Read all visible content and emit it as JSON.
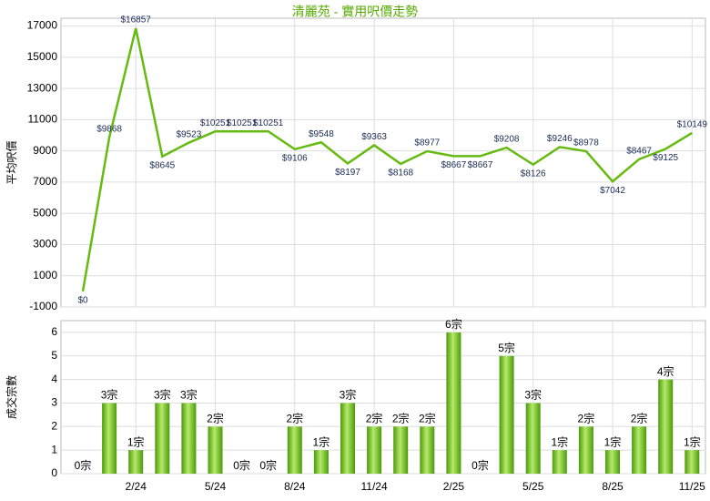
{
  "chart_data": [
    {
      "type": "line",
      "title": "清麗苑 - 實用呎價走勢",
      "y_label": "平均呎價",
      "categories": [
        null,
        null,
        "2/24",
        null,
        null,
        "5/24",
        null,
        null,
        "8/24",
        null,
        null,
        "11/24",
        null,
        null,
        "2/25",
        null,
        null,
        "5/25",
        null,
        null,
        "8/25",
        null,
        null,
        "11/25"
      ],
      "values": [
        0,
        9868,
        16857,
        8645,
        9523,
        10251,
        10251,
        10251,
        9106,
        9548,
        8197,
        9363,
        8168,
        8977,
        8667,
        8667,
        9208,
        8126,
        9246,
        8978,
        7042,
        8467,
        9125,
        10149
      ],
      "value_labels": [
        "$0",
        "$9868",
        "$16857",
        "$8645",
        "$9523",
        "$10251",
        "$10251",
        "$10251",
        "$9106",
        "$9548",
        "$8197",
        "$9363",
        "$8168",
        "$8977",
        "$8667",
        "$8667",
        "$9208",
        "$8126",
        "$9246",
        "$8978",
        "$7042",
        "$8467",
        "$9125",
        "$10149"
      ],
      "color": "#66bb11",
      "ylim": [
        -1000,
        17500
      ],
      "yticks": [
        -1000,
        1000,
        3000,
        5000,
        7000,
        9000,
        11000,
        13000,
        15000,
        17000
      ],
      "grid": true
    },
    {
      "type": "bar",
      "y_label": "成交宗數",
      "categories": [
        null,
        null,
        "2/24",
        null,
        null,
        "5/24",
        null,
        null,
        "8/24",
        null,
        null,
        "11/24",
        null,
        null,
        "2/25",
        null,
        null,
        "5/25",
        null,
        null,
        "8/25",
        null,
        null,
        "11/25"
      ],
      "values": [
        0,
        3,
        1,
        3,
        3,
        2,
        0,
        0,
        2,
        1,
        3,
        2,
        2,
        2,
        6,
        0,
        5,
        3,
        1,
        2,
        1,
        2,
        4,
        1
      ],
      "value_labels": [
        "0宗",
        "3宗",
        "1宗",
        "3宗",
        "3宗",
        "2宗",
        "0宗",
        "0宗",
        "2宗",
        "1宗",
        "3宗",
        "2宗",
        "2宗",
        "2宗",
        "6宗",
        "0宗",
        "5宗",
        "3宗",
        "1宗",
        "2宗",
        "1宗",
        "2宗",
        "4宗",
        "1宗"
      ],
      "color": "#66bb11",
      "ylim": [
        0,
        6.5
      ],
      "yticks": [
        0,
        1,
        2,
        3,
        4,
        5,
        6
      ],
      "grid": true
    }
  ]
}
